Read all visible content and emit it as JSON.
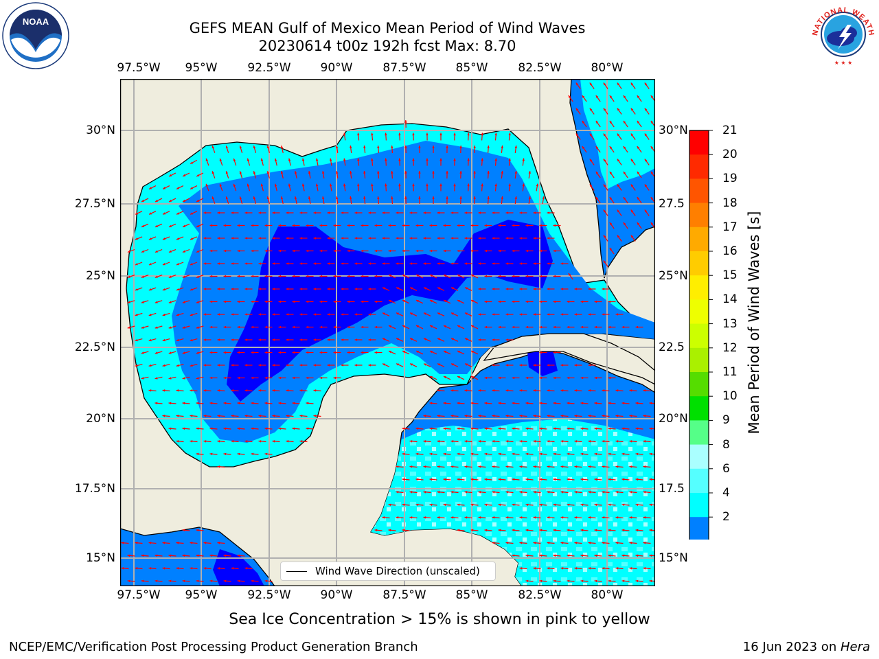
{
  "title": {
    "line1": "GEFS MEAN Gulf of Mexico Mean Period of Wind Waves",
    "line2": "20230614 t00z 192h fcst   Max: 8.70"
  },
  "logos": {
    "left": "NOAA",
    "right": "NATIONAL WEATHER SERVICE"
  },
  "map": {
    "lon_ticks": [
      "97.5°W",
      "95°W",
      "92.5°W",
      "90°W",
      "87.5°W",
      "85°W",
      "82.5°W",
      "80°W"
    ],
    "lat_ticks_left": [
      "30°N",
      "27.5°N",
      "25°N",
      "22.5°N",
      "20°N",
      "17.5°N",
      "15°N"
    ],
    "lat_ticks_right": [
      "30°N",
      "27.5",
      "25°N",
      "22.5",
      "20°N",
      "17.5",
      "15°N"
    ],
    "land_color": "#efedde",
    "arrow_color": "#ff0000",
    "grid": true
  },
  "legend": {
    "label": "Wind Wave Direction (unscaled)"
  },
  "colorbar": {
    "label": "Mean Period of Wind Waves [s]",
    "ticks": [
      "21",
      "20",
      "19",
      "18",
      "17",
      "16",
      "15",
      "14",
      "13",
      "12",
      "11",
      "10",
      "9",
      "8",
      "6",
      "4",
      "2"
    ],
    "colors_top_to_bottom": [
      "#ff0000",
      "#ff2a00",
      "#ff5500",
      "#ff7f00",
      "#ffaa00",
      "#ffcc00",
      "#ffee00",
      "#eeff00",
      "#ccff00",
      "#aaf000",
      "#55dd00",
      "#00e000",
      "#55ff88",
      "#aaffff",
      "#55ffff",
      "#00ffff",
      "#0080ff"
    ],
    "under_color": "#0000ff"
  },
  "note": "Sea Ice Concentration > 15% is shown in pink to yellow",
  "footer": {
    "left": "NCEP/EMC/Verification Post Processing Product Generation Branch",
    "right_date": "16 Jun 2023 on ",
    "right_host": "Hera"
  }
}
